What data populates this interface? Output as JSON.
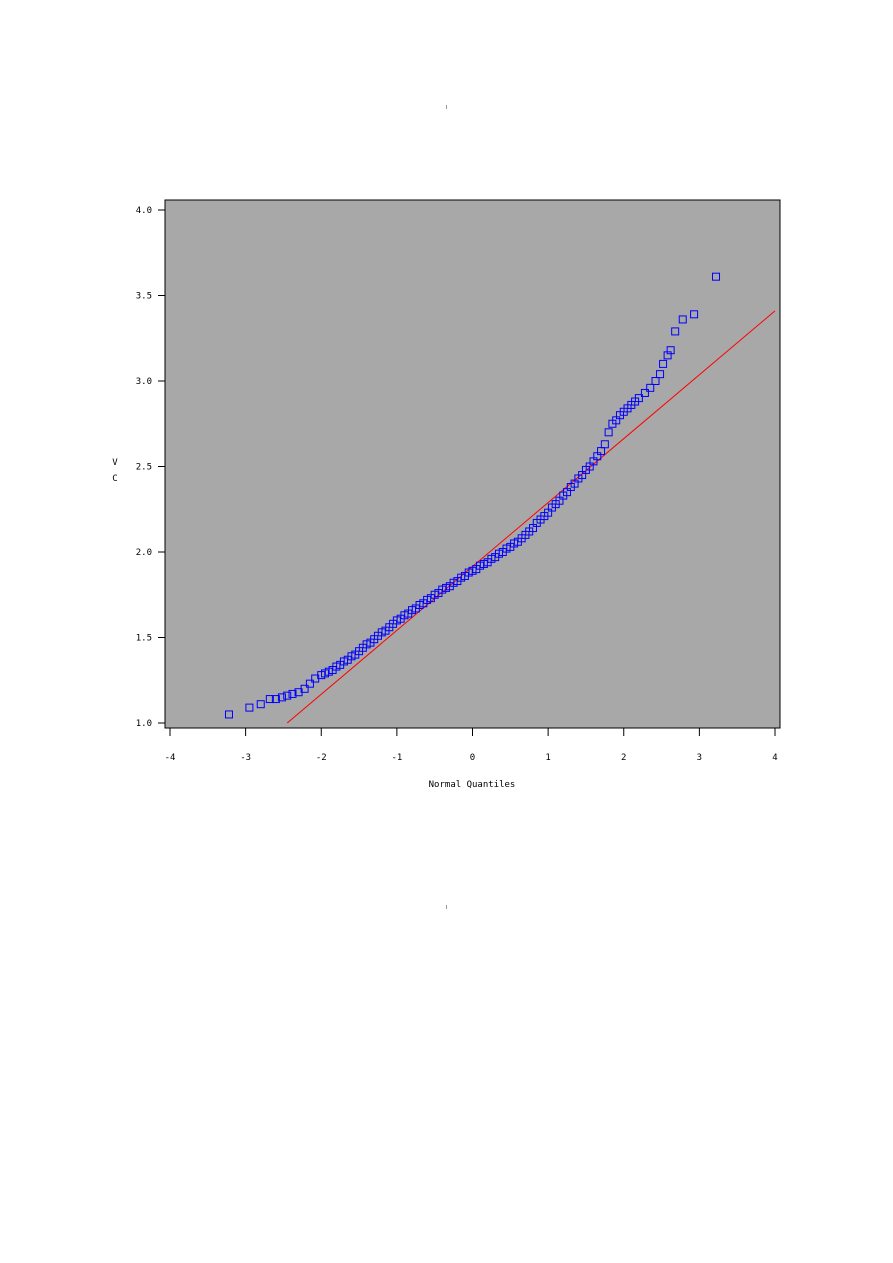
{
  "chart_data": {
    "type": "scatter",
    "title": "",
    "xlabel": "Normal Quantiles",
    "ylabel": [
      "V",
      "C"
    ],
    "xlim": [
      -4,
      4
    ],
    "ylim": [
      1.0,
      4.0
    ],
    "xticks": [
      "-4",
      "-3",
      "-2",
      "-1",
      "0",
      "1",
      "2",
      "3",
      "4"
    ],
    "yticks": [
      "1.0",
      "1.5",
      "2.0",
      "2.5",
      "3.0",
      "3.5",
      "4.0"
    ],
    "grid": false,
    "legend": "none",
    "background_color": "#a8a8a8",
    "marker": "open-square",
    "marker_color": "#0000ff",
    "reference_line": {
      "color": "#ff0000",
      "from": [
        -2.45,
        1.0
      ],
      "to": [
        4.0,
        3.41
      ]
    },
    "points": [
      [
        -3.22,
        1.05
      ],
      [
        -2.95,
        1.09
      ],
      [
        -2.8,
        1.11
      ],
      [
        -2.68,
        1.14
      ],
      [
        -2.6,
        1.14
      ],
      [
        -2.52,
        1.15
      ],
      [
        -2.45,
        1.16
      ],
      [
        -2.38,
        1.17
      ],
      [
        -2.3,
        1.18
      ],
      [
        -2.22,
        1.2
      ],
      [
        -2.15,
        1.23
      ],
      [
        -2.08,
        1.26
      ],
      [
        -2.0,
        1.28
      ],
      [
        -1.95,
        1.29
      ],
      [
        -1.9,
        1.3
      ],
      [
        -1.85,
        1.31
      ],
      [
        -1.8,
        1.33
      ],
      [
        -1.75,
        1.34
      ],
      [
        -1.7,
        1.36
      ],
      [
        -1.65,
        1.37
      ],
      [
        -1.6,
        1.39
      ],
      [
        -1.55,
        1.4
      ],
      [
        -1.5,
        1.42
      ],
      [
        -1.45,
        1.44
      ],
      [
        -1.4,
        1.46
      ],
      [
        -1.35,
        1.47
      ],
      [
        -1.3,
        1.49
      ],
      [
        -1.25,
        1.51
      ],
      [
        -1.2,
        1.53
      ],
      [
        -1.15,
        1.54
      ],
      [
        -1.1,
        1.56
      ],
      [
        -1.05,
        1.58
      ],
      [
        -1.0,
        1.6
      ],
      [
        -0.95,
        1.61
      ],
      [
        -0.9,
        1.63
      ],
      [
        -0.85,
        1.64
      ],
      [
        -0.8,
        1.66
      ],
      [
        -0.75,
        1.67
      ],
      [
        -0.7,
        1.69
      ],
      [
        -0.65,
        1.7
      ],
      [
        -0.6,
        1.72
      ],
      [
        -0.55,
        1.73
      ],
      [
        -0.5,
        1.75
      ],
      [
        -0.45,
        1.76
      ],
      [
        -0.4,
        1.78
      ],
      [
        -0.35,
        1.79
      ],
      [
        -0.3,
        1.8
      ],
      [
        -0.25,
        1.82
      ],
      [
        -0.2,
        1.83
      ],
      [
        -0.15,
        1.85
      ],
      [
        -0.1,
        1.86
      ],
      [
        -0.05,
        1.88
      ],
      [
        0.0,
        1.89
      ],
      [
        0.05,
        1.9
      ],
      [
        0.1,
        1.92
      ],
      [
        0.15,
        1.93
      ],
      [
        0.2,
        1.94
      ],
      [
        0.25,
        1.96
      ],
      [
        0.3,
        1.97
      ],
      [
        0.35,
        1.99
      ],
      [
        0.4,
        2.0
      ],
      [
        0.45,
        2.02
      ],
      [
        0.5,
        2.03
      ],
      [
        0.55,
        2.05
      ],
      [
        0.6,
        2.06
      ],
      [
        0.65,
        2.08
      ],
      [
        0.7,
        2.1
      ],
      [
        0.75,
        2.12
      ],
      [
        0.8,
        2.14
      ],
      [
        0.85,
        2.17
      ],
      [
        0.9,
        2.19
      ],
      [
        0.95,
        2.21
      ],
      [
        1.0,
        2.23
      ],
      [
        1.05,
        2.26
      ],
      [
        1.1,
        2.28
      ],
      [
        1.15,
        2.3
      ],
      [
        1.2,
        2.33
      ],
      [
        1.25,
        2.35
      ],
      [
        1.3,
        2.38
      ],
      [
        1.35,
        2.4
      ],
      [
        1.4,
        2.43
      ],
      [
        1.45,
        2.45
      ],
      [
        1.5,
        2.48
      ],
      [
        1.55,
        2.5
      ],
      [
        1.6,
        2.53
      ],
      [
        1.65,
        2.56
      ],
      [
        1.7,
        2.59
      ],
      [
        1.75,
        2.63
      ],
      [
        1.8,
        2.7
      ],
      [
        1.85,
        2.75
      ],
      [
        1.9,
        2.77
      ],
      [
        1.95,
        2.8
      ],
      [
        2.0,
        2.82
      ],
      [
        2.05,
        2.84
      ],
      [
        2.1,
        2.86
      ],
      [
        2.15,
        2.88
      ],
      [
        2.2,
        2.9
      ],
      [
        2.28,
        2.93
      ],
      [
        2.35,
        2.96
      ],
      [
        2.42,
        3.0
      ],
      [
        2.48,
        3.04
      ],
      [
        2.52,
        3.1
      ],
      [
        2.58,
        3.15
      ],
      [
        2.62,
        3.18
      ],
      [
        2.68,
        3.29
      ],
      [
        2.78,
        3.36
      ],
      [
        2.93,
        3.39
      ],
      [
        3.22,
        3.61
      ]
    ]
  }
}
